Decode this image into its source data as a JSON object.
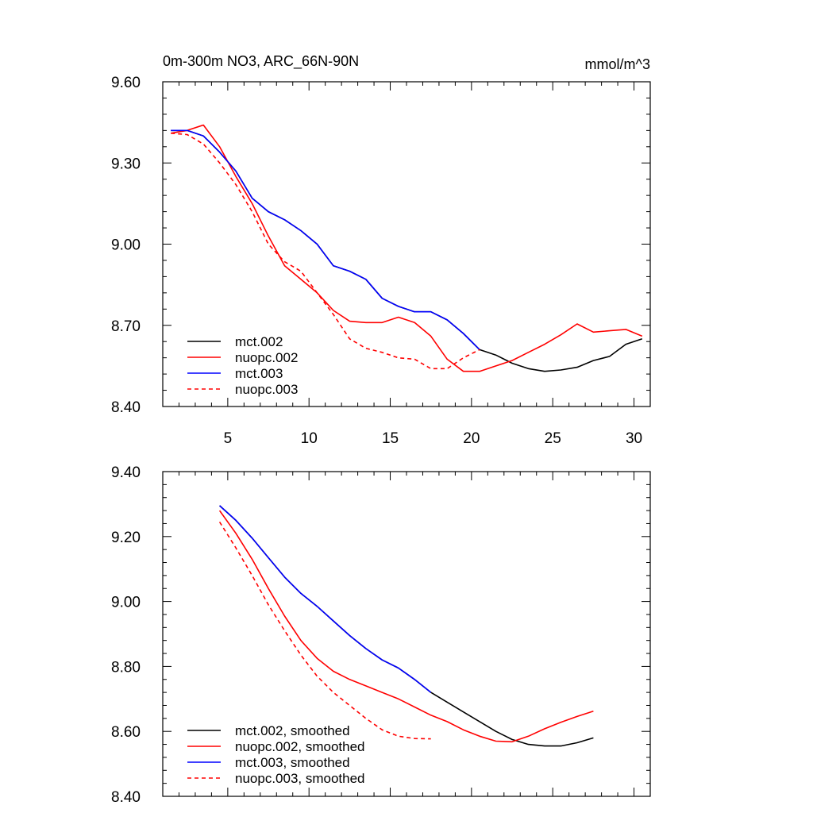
{
  "chart_data": [
    {
      "type": "line",
      "title": "0m-300m NO3, ARC_66N-90N",
      "units": "mmol/m^3",
      "xlim": [
        1,
        31
      ],
      "ylim": [
        8.4,
        9.6
      ],
      "xticks": [
        5,
        10,
        15,
        20,
        25,
        30
      ],
      "xtick_labels": [
        "5",
        "10",
        "15",
        "20",
        "25",
        "30"
      ],
      "yticks": [
        8.4,
        8.7,
        9.0,
        9.3,
        9.6
      ],
      "ytick_labels": [
        "8.40",
        "8.70",
        "9.00",
        "9.30",
        "9.60"
      ],
      "legend_position": "bottom-left",
      "series": [
        {
          "name": "mct.002",
          "color": "#000000",
          "dash": "solid",
          "x": [
            1.5,
            2.5,
            3.5,
            4.5,
            5.5,
            6.5,
            7.5,
            8.5,
            9.5,
            10.5,
            11.5,
            12.5,
            13.5,
            14.5,
            15.5,
            16.5,
            17.5,
            18.5,
            19.5,
            20.5,
            21.5,
            22.5,
            23.5,
            24.5,
            25.5,
            26.5,
            27.5,
            28.5,
            29.5,
            30.5
          ],
          "y": [
            9.42,
            9.42,
            9.4,
            9.34,
            9.27,
            9.17,
            9.12,
            9.09,
            9.05,
            9.0,
            8.92,
            8.9,
            8.87,
            8.8,
            8.77,
            8.75,
            8.75,
            8.72,
            8.67,
            8.61,
            8.59,
            8.56,
            8.54,
            8.53,
            8.535,
            8.545,
            8.57,
            8.585,
            8.63,
            8.65
          ]
        },
        {
          "name": "nuopc.002",
          "color": "#ff0000",
          "dash": "solid",
          "x": [
            1.5,
            2.5,
            3.5,
            4.5,
            5.5,
            6.5,
            7.5,
            8.5,
            9.5,
            10.5,
            11.5,
            12.5,
            13.5,
            14.5,
            15.5,
            16.5,
            17.5,
            18.5,
            19.5,
            20.5,
            21.5,
            22.5,
            23.5,
            24.5,
            25.5,
            26.5,
            27.5,
            28.5,
            29.5,
            30.5
          ],
          "y": [
            9.41,
            9.42,
            9.44,
            9.36,
            9.25,
            9.15,
            9.03,
            8.92,
            8.87,
            8.82,
            8.755,
            8.715,
            8.71,
            8.71,
            8.73,
            8.71,
            8.66,
            8.575,
            8.53,
            8.53,
            8.55,
            8.57,
            8.6,
            8.63,
            8.665,
            8.705,
            8.675,
            8.68,
            8.685,
            8.66
          ]
        },
        {
          "name": "mct.003",
          "color": "#0000ff",
          "dash": "solid",
          "x": [
            1.5,
            2.5,
            3.5,
            4.5,
            5.5,
            6.5,
            7.5,
            8.5,
            9.5,
            10.5,
            11.5,
            12.5,
            13.5,
            14.5,
            15.5,
            16.5,
            17.5,
            18.5,
            19.5,
            20.5
          ],
          "y": [
            9.42,
            9.42,
            9.4,
            9.34,
            9.27,
            9.17,
            9.12,
            9.09,
            9.05,
            9.0,
            8.92,
            8.9,
            8.87,
            8.8,
            8.77,
            8.75,
            8.75,
            8.72,
            8.67,
            8.61
          ]
        },
        {
          "name": "nuopc.003",
          "color": "#ff0000",
          "dash": "dashed",
          "x": [
            1.5,
            2.5,
            3.5,
            4.5,
            5.5,
            6.5,
            7.5,
            8.5,
            9.5,
            10.5,
            11.5,
            12.5,
            13.5,
            14.5,
            15.5,
            16.5,
            17.5,
            18.5,
            19.5,
            20.5
          ],
          "y": [
            9.41,
            9.405,
            9.37,
            9.3,
            9.22,
            9.12,
            9.0,
            8.935,
            8.9,
            8.82,
            8.74,
            8.65,
            8.615,
            8.6,
            8.58,
            8.575,
            8.54,
            8.54,
            8.58,
            8.61
          ]
        }
      ]
    },
    {
      "type": "line",
      "title": "",
      "xlim": [
        1,
        31
      ],
      "ylim": [
        8.4,
        9.4
      ],
      "xticks": [
        5,
        10,
        15,
        20,
        25,
        30
      ],
      "xtick_labels": [],
      "yticks": [
        8.4,
        8.6,
        8.8,
        9.0,
        9.2,
        9.4
      ],
      "ytick_labels": [
        "8.40",
        "8.60",
        "8.80",
        "9.00",
        "9.20",
        "9.40"
      ],
      "legend_position": "bottom-left",
      "series": [
        {
          "name": "mct.002, smoothed",
          "color": "#000000",
          "dash": "solid",
          "x": [
            4.5,
            5.5,
            6.5,
            7.5,
            8.5,
            9.5,
            10.5,
            11.5,
            12.5,
            13.5,
            14.5,
            15.5,
            16.5,
            17.5,
            18.5,
            19.5,
            20.5,
            21.5,
            22.5,
            23.5,
            24.5,
            25.5,
            26.5,
            27.5
          ],
          "y": [
            9.295,
            9.25,
            9.195,
            9.135,
            9.075,
            9.025,
            8.985,
            8.94,
            8.895,
            8.855,
            8.82,
            8.795,
            8.76,
            8.72,
            8.69,
            8.66,
            8.63,
            8.6,
            8.575,
            8.56,
            8.555,
            8.555,
            8.565,
            8.58
          ]
        },
        {
          "name": "nuopc.002, smoothed",
          "color": "#ff0000",
          "dash": "solid",
          "x": [
            4.5,
            5.5,
            6.5,
            7.5,
            8.5,
            9.5,
            10.5,
            11.5,
            12.5,
            13.5,
            14.5,
            15.5,
            16.5,
            17.5,
            18.5,
            19.5,
            20.5,
            21.5,
            22.5,
            23.5,
            24.5,
            25.5,
            26.5,
            27.5
          ],
          "y": [
            9.28,
            9.21,
            9.13,
            9.04,
            8.955,
            8.88,
            8.825,
            8.785,
            8.76,
            8.74,
            8.72,
            8.7,
            8.675,
            8.65,
            8.63,
            8.605,
            8.585,
            8.57,
            8.568,
            8.585,
            8.608,
            8.628,
            8.646,
            8.662
          ]
        },
        {
          "name": "mct.003, smoothed",
          "color": "#0000ff",
          "dash": "solid",
          "x": [
            4.5,
            5.5,
            6.5,
            7.5,
            8.5,
            9.5,
            10.5,
            11.5,
            12.5,
            13.5,
            14.5,
            15.5,
            16.5,
            17.5
          ],
          "y": [
            9.295,
            9.25,
            9.195,
            9.135,
            9.075,
            9.025,
            8.985,
            8.94,
            8.895,
            8.855,
            8.82,
            8.795,
            8.76,
            8.72
          ]
        },
        {
          "name": "nuopc.003, smoothed",
          "color": "#ff0000",
          "dash": "dashed",
          "x": [
            4.5,
            5.5,
            6.5,
            7.5,
            8.5,
            9.5,
            10.5,
            11.5,
            12.5,
            13.5,
            14.5,
            15.5,
            16.5,
            17.5
          ],
          "y": [
            9.245,
            9.165,
            9.08,
            8.99,
            8.91,
            8.835,
            8.77,
            8.72,
            8.68,
            8.64,
            8.605,
            8.585,
            8.578,
            8.577
          ]
        }
      ]
    }
  ]
}
